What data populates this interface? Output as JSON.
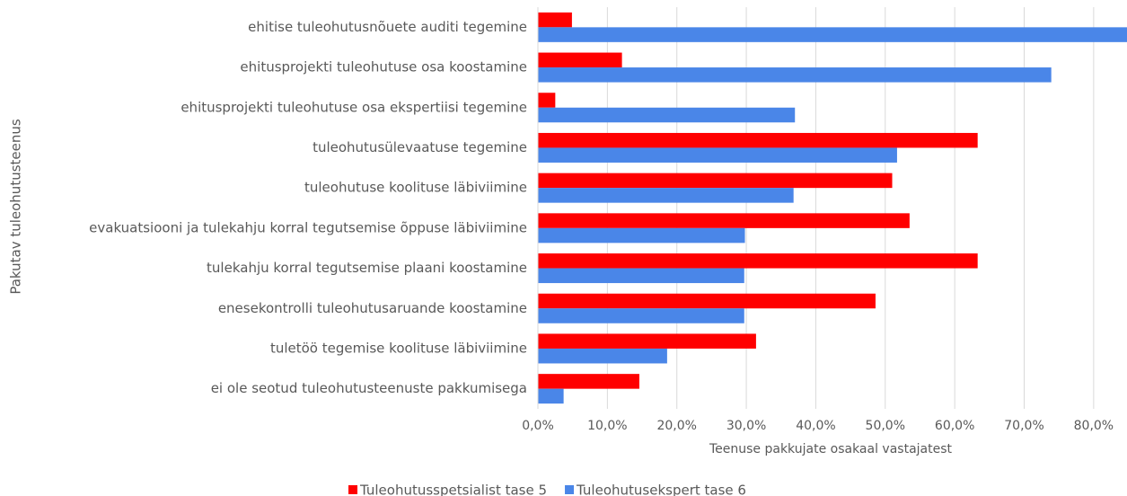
{
  "chart_data": {
    "type": "hbar",
    "x_label": "Teenuse pakkujate osakaal vastajatest",
    "y_label": "Pakutav tuleohutusteenus",
    "categories": [
      "ehitise tuleohutusnõuete auditi tegemine",
      "ehitusprojekti tuleohutuse osa koostamine",
      "ehitusprojekti tuleohutuse osa ekspertiisi tegemine",
      "tuleohutusülevaatuse tegemine",
      "tuleohutuse koolituse läbiviimine",
      "evakuatsiooni ja tulekahju korral tegutsemise õppuse läbiviimine",
      "tulekahju korral tegutsemise plaani koostamine",
      "enesekontrolli tuleohutusaruande koostamine",
      "tuletöö tegemise koolituse läbiviimine",
      "ei ole seotud tuleohutusteenuste pakkumisega"
    ],
    "series": [
      {
        "name": "Tuleohutusspetsialist tase 5",
        "color": "#ff0000",
        "values": [
          4.9,
          12.1,
          2.5,
          63.3,
          51.0,
          53.5,
          63.3,
          48.6,
          31.4,
          14.6
        ]
      },
      {
        "name": "Tuleohutusekspert tase 6",
        "color": "#4a86e8",
        "values": [
          85.0,
          73.9,
          37.0,
          51.7,
          36.8,
          29.8,
          29.7,
          29.7,
          18.6,
          3.7
        ]
      }
    ],
    "xlim": [
      0,
      84.8
    ],
    "xticks": [
      {
        "value": 0,
        "label": "0,0%"
      },
      {
        "value": 10,
        "label": "10,0%"
      },
      {
        "value": 20,
        "label": "20,0%"
      },
      {
        "value": 30,
        "label": "30,0%"
      },
      {
        "value": 40,
        "label": "40,0%"
      },
      {
        "value": 50,
        "label": "50,0%"
      },
      {
        "value": 60,
        "label": "60,0%"
      },
      {
        "value": 70,
        "label": "70,0%"
      },
      {
        "value": 80,
        "label": "80,0%"
      }
    ],
    "grid": true,
    "legend": "bottom"
  }
}
